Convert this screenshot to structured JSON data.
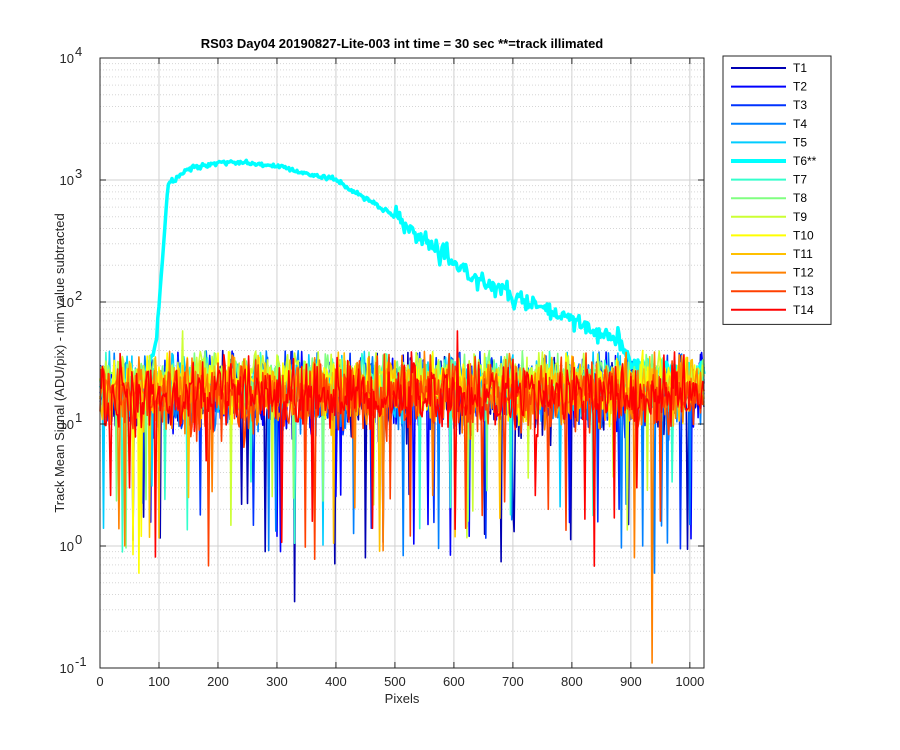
{
  "chart_data": {
    "type": "line",
    "title": "RS03 Day04 20190827-Lite-003 int time = 30 sec   **=track illimated",
    "xlabel": "Pixels",
    "ylabel": "Track Mean Signal (ADU/pix) - min value subtracted",
    "xlim": [
      0,
      1024
    ],
    "ylim": [
      0.1,
      10000
    ],
    "yscale": "log",
    "grid": "major and minor (dotted)",
    "legend_position": "outside right, top",
    "x_ticks": [
      "0",
      "100",
      "200",
      "300",
      "400",
      "500",
      "600",
      "700",
      "800",
      "900",
      "1000"
    ],
    "y_ticks": [
      {
        "base": "10",
        "exp": "-1"
      },
      {
        "base": "10",
        "exp": "0"
      },
      {
        "base": "10",
        "exp": "1"
      },
      {
        "base": "10",
        "exp": "2"
      },
      {
        "base": "10",
        "exp": "3"
      },
      {
        "base": "10",
        "exp": "4"
      }
    ],
    "series": [
      {
        "name": "T1",
        "color": "#0000b3",
        "noise_median": 17,
        "spread": 0.55,
        "spikes_low": [
          [
            330,
            0.35
          ],
          [
            240,
            2.2
          ],
          [
            280,
            0.9
          ],
          [
            450,
            0.8
          ],
          [
            700,
            2.0
          ],
          [
            895,
            1.5
          ]
        ]
      },
      {
        "name": "T2",
        "color": "#0000ff",
        "noise_median": 18,
        "spread": 0.5,
        "spikes_low": [
          [
            305,
            0.9
          ],
          [
            555,
            1.5
          ],
          [
            625,
            1.2
          ]
        ]
      },
      {
        "name": "T3",
        "color": "#0033ff",
        "noise_median": 19,
        "spread": 0.5,
        "spikes_low": [
          [
            170,
            1.8
          ],
          [
            460,
            1.4
          ],
          [
            880,
            2.0
          ]
        ]
      },
      {
        "name": "T4",
        "color": "#0080ff",
        "noise_median": 19,
        "spread": 0.5,
        "spikes_low": [
          [
            920,
            1.0
          ],
          [
            1000,
            1.5
          ],
          [
            940,
            0.6
          ]
        ]
      },
      {
        "name": "T5",
        "color": "#00ccff",
        "noise_median": 20,
        "spread": 0.45,
        "spikes_low": [
          [
            5,
            1.4
          ],
          [
            780,
            2.1
          ]
        ]
      },
      {
        "name": "T6**",
        "color": "#00ffff",
        "illuminated": true,
        "profile": [
          [
            0,
            20
          ],
          [
            75,
            25
          ],
          [
            95,
            45
          ],
          [
            108,
            300
          ],
          [
            115,
            900
          ],
          [
            150,
            1250
          ],
          [
            220,
            1420
          ],
          [
            300,
            1300
          ],
          [
            400,
            1000
          ],
          [
            500,
            500
          ],
          [
            600,
            200
          ],
          [
            700,
            110
          ],
          [
            800,
            70
          ],
          [
            850,
            55
          ],
          [
            880,
            50
          ],
          [
            900,
            30
          ],
          [
            1024,
            28
          ]
        ]
      },
      {
        "name": "T7",
        "color": "#33ffcc",
        "noise_median": 22,
        "spread": 0.35,
        "spikes_low": []
      },
      {
        "name": "T8",
        "color": "#80ff80",
        "noise_median": 24,
        "spread": 0.3,
        "spikes_low": []
      },
      {
        "name": "T9",
        "color": "#ccff33",
        "noise_median": 24,
        "spread": 0.35,
        "spikes_low": [
          [
            140,
            58
          ]
        ]
      },
      {
        "name": "T10",
        "color": "#ffff00",
        "noise_median": 20,
        "spread": 0.45,
        "spikes_low": [
          [
            65,
            0.6
          ],
          [
            55,
            0.85
          ],
          [
            70,
            1.2
          ]
        ]
      },
      {
        "name": "T11",
        "color": "#ffc000",
        "noise_median": 19,
        "spread": 0.45,
        "spikes_low": [
          [
            150,
            2.5
          ]
        ]
      },
      {
        "name": "T12",
        "color": "#ff8000",
        "noise_median": 18,
        "spread": 0.5,
        "spikes_low": [
          [
            935,
            0.11
          ],
          [
            905,
            0.8
          ]
        ]
      },
      {
        "name": "T13",
        "color": "#ff4000",
        "noise_median": 17,
        "spread": 0.5,
        "spikes_low": [
          [
            620,
            1.4
          ],
          [
            760,
            2.0
          ],
          [
            950,
            1.6
          ]
        ]
      },
      {
        "name": "T14",
        "color": "#ff0000",
        "noise_median": 17,
        "spread": 0.5,
        "spikes_low": [
          [
            50,
            3.0
          ],
          [
            180,
            5.0
          ],
          [
            605,
            58
          ],
          [
            910,
            3.0
          ]
        ]
      }
    ]
  }
}
